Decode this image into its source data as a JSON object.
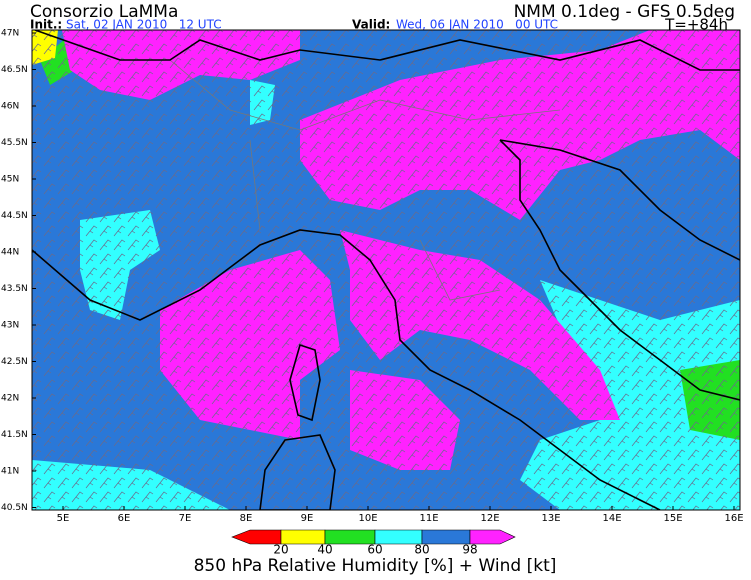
{
  "header": {
    "title": "Consorzio LaMMa",
    "model": "NMM 0.1deg - GFS 0.5deg",
    "init_label": "Init.:",
    "init_time": "Sat, 02 JAN 2010   12 UTC",
    "valid_label": "Valid:",
    "valid_time": "Wed, 06 JAN 2010   00 UTC",
    "lead_time": "T=+84h"
  },
  "map": {
    "lat_labels": [
      "47N",
      "46.5N",
      "46N",
      "45.5N",
      "45N",
      "44.5N",
      "44N",
      "43.5N",
      "43N",
      "42.5N",
      "42N",
      "41.5N",
      "41N",
      "40.5N"
    ],
    "lon_labels": [
      "5E",
      "6E",
      "7E",
      "8E",
      "9E",
      "10E",
      "11E",
      "12E",
      "13E",
      "14E",
      "15E",
      "16E"
    ]
  },
  "legend": {
    "ticks": [
      "20",
      "40",
      "60",
      "80",
      "98"
    ],
    "colors": [
      "#ff0000",
      "#ffff00",
      "#22e022",
      "#33ffff",
      "#2a78d8",
      "#ff22ff"
    ],
    "caption": "850 hPa Relative Humidity [%] + Wind [kt]"
  }
}
